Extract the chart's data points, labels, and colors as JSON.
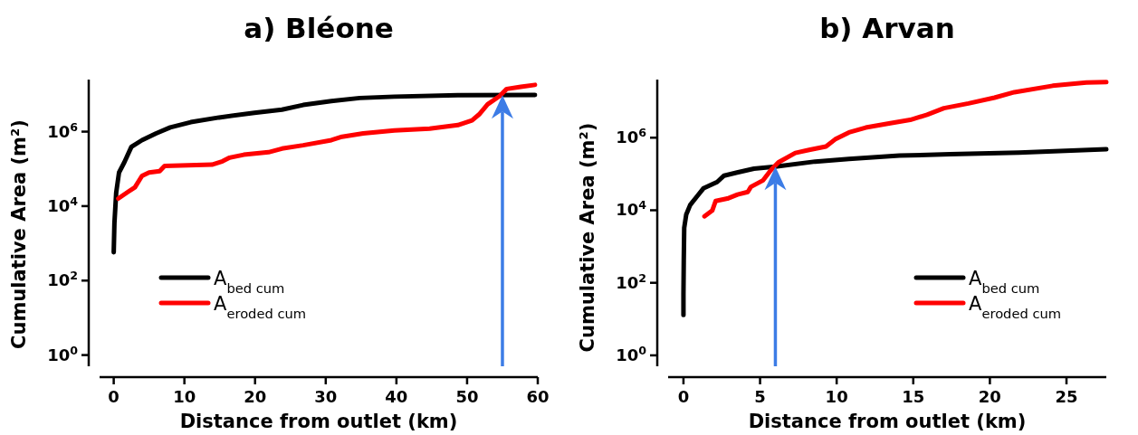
{
  "chart_data": [
    {
      "type": "line",
      "title": "a) Bléone",
      "xlabel": "Distance from outlet (km)",
      "ylabel": "Cumulative Area (m²)",
      "log": "y",
      "legend": "bottom left",
      "xlim": [
        -2,
        60
      ],
      "xticks": [
        0,
        10,
        20,
        30,
        40,
        50,
        60
      ],
      "ylim": [
        0.5,
        25000000
      ],
      "yticks": [
        {
          "value": 1,
          "label": "10$^{0}$"
        },
        {
          "value": 100,
          "label": "10$^{2}$"
        },
        {
          "value": 10000,
          "label": "10$^{4}$"
        },
        {
          "value": 1000000,
          "label": "10$^{6}$"
        }
      ],
      "series": [
        {
          "name": "A$_{bed cum}$",
          "color": "#000000",
          "x": [
            0,
            0.1,
            0.35,
            0.75,
            1.5,
            2.5,
            4,
            6,
            8,
            10.9,
            14.9,
            19.9,
            23.8,
            26.8,
            30.8,
            34.8,
            39.7,
            48.7,
            59.6
          ],
          "values": [
            575,
            3500,
            23000,
            80000,
            150000,
            390000,
            590000,
            900000,
            1300000,
            1800000,
            2400000,
            3200000,
            3900000,
            5200000,
            6600000,
            8000000,
            8700000,
            9500000,
            9600000
          ]
        },
        {
          "name": "A$_{eroded cum}$",
          "color": "#ff0000",
          "x": [
            0.65,
            2,
            3,
            4,
            5,
            6.5,
            7.2,
            13.9,
            15.4,
            16.4,
            18.4,
            21.9,
            23.8,
            26.8,
            30.8,
            32.3,
            35.3,
            39.7,
            44.7,
            48.7,
            50.7,
            51.7,
            52.9,
            54.6,
            55.6,
            57.6,
            59.6
          ],
          "values": [
            16000,
            24000,
            32000,
            65000,
            80000,
            87000,
            120000,
            130000,
            160000,
            200000,
            240000,
            280000,
            350000,
            430000,
            590000,
            730000,
            900000,
            1070000,
            1200000,
            1500000,
            2000000,
            2900000,
            5400000,
            9000000,
            14000000,
            16000000,
            18000000
          ]
        }
      ],
      "ref_lines": [
        {
          "axis": "x",
          "value": 55,
          "color": "#3c7ce6"
        }
      ]
    },
    {
      "type": "line",
      "title": "b) Arvan",
      "xlabel": "Distance from outlet (km)",
      "ylabel": "Cumulative Area (m²)",
      "log": "y",
      "legend": "bottom right",
      "xlim": [
        -1,
        27.6
      ],
      "xticks": [
        0,
        5,
        10,
        15,
        20,
        25
      ],
      "ylim": [
        0.5,
        40000000
      ],
      "yticks": [
        {
          "value": 1,
          "label": "10$^{0}$"
        },
        {
          "value": 100,
          "label": "10$^{2}$"
        },
        {
          "value": 10000,
          "label": "10$^{4}$"
        },
        {
          "value": 1000000,
          "label": "10$^{6}$"
        }
      ],
      "series": [
        {
          "name": "A$_{bed cum}$",
          "color": "#000000",
          "x": [
            0,
            0,
            0.02,
            0.05,
            0.18,
            0.44,
            0.88,
            1.3,
            2.2,
            2.65,
            3.5,
            4.6,
            6,
            8.6,
            10.8,
            14.1,
            17.4,
            21.9,
            27.6
          ],
          "values": [
            13,
            50,
            420,
            3300,
            7600,
            14000,
            24000,
            40000,
            60000,
            90000,
            110000,
            140000,
            160000,
            220000,
            260000,
            320000,
            350000,
            390000,
            480000
          ]
        },
        {
          "name": "A$_{eroded cum}$",
          "color": "#ff0000",
          "x": [
            1.37,
            1.88,
            2.1,
            2.87,
            3.53,
            4.2,
            4.4,
            5.2,
            5.7,
            6.2,
            7.3,
            8.2,
            9.3,
            9.9,
            10.8,
            11.9,
            13.5,
            14.8,
            15.9,
            17,
            18.6,
            20.3,
            21.6,
            24.1,
            26.3,
            27.6
          ],
          "values": [
            6800,
            9800,
            18000,
            21000,
            27000,
            32000,
            44000,
            67000,
            126000,
            210000,
            380000,
            460000,
            570000,
            900000,
            1400000,
            1900000,
            2500000,
            3100000,
            4300000,
            6500000,
            8800000,
            12700000,
            18000000,
            27000000,
            33000000,
            34000000
          ]
        }
      ],
      "ref_lines": [
        {
          "axis": "x",
          "value": 6,
          "color": "#3c7ce6"
        }
      ]
    }
  ]
}
